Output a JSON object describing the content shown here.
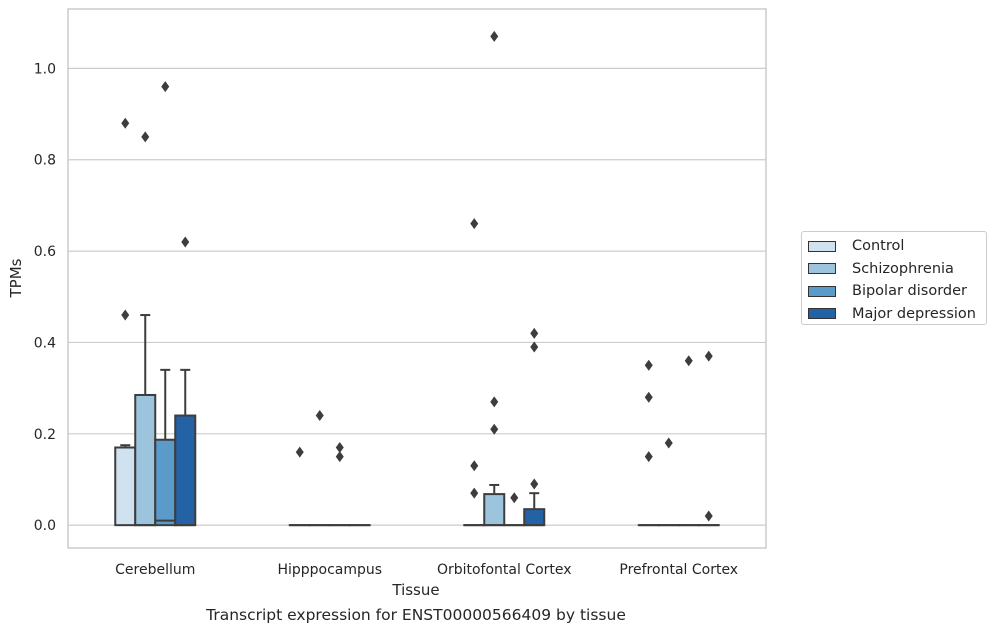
{
  "chart_data": {
    "type": "box",
    "ylabel": "TPMs",
    "xlabel": "Tissue",
    "caption": "Transcript expression for ENST00000566409 by tissue",
    "ylim": [
      -0.05,
      1.13
    ],
    "yticks": [
      0.0,
      0.2,
      0.4,
      0.6,
      0.8,
      1.0
    ],
    "ytick_labels": [
      "0.0",
      "0.2",
      "0.4",
      "0.6",
      "0.8",
      "1.0"
    ],
    "grid": true,
    "legend_position": "right",
    "categories": [
      "Cerebellum",
      "Hipppocampus",
      "Orbitofontal Cortex",
      "Prefrontal Cortex"
    ],
    "series": [
      {
        "name": "Control",
        "color": "#d0e1f0",
        "boxes": [
          {
            "q1": 0.0,
            "median": 0.17,
            "q3": 0.17,
            "whisker_low": 0.0,
            "whisker_high": 0.175,
            "outliers": [
              0.46,
              0.88
            ]
          },
          {
            "q1": 0.0,
            "median": 0.0,
            "q3": 0.0,
            "whisker_low": 0.0,
            "whisker_high": 0.0,
            "outliers": [
              0.16
            ]
          },
          {
            "q1": 0.0,
            "median": 0.0,
            "q3": 0.0,
            "whisker_low": 0.0,
            "whisker_high": 0.0,
            "outliers": [
              0.07,
              0.13,
              0.66
            ]
          },
          {
            "q1": 0.0,
            "median": 0.0,
            "q3": 0.0,
            "whisker_low": 0.0,
            "whisker_high": 0.0,
            "outliers": [
              0.15,
              0.28,
              0.35
            ]
          }
        ]
      },
      {
        "name": "Schizophrenia",
        "color": "#9dc4dd",
        "boxes": [
          {
            "q1": 0.0,
            "median": 0.0,
            "q3": 0.285,
            "whisker_low": 0.0,
            "whisker_high": 0.46,
            "outliers": [
              0.85
            ]
          },
          {
            "q1": 0.0,
            "median": 0.0,
            "q3": 0.0,
            "whisker_low": 0.0,
            "whisker_high": 0.0,
            "outliers": [
              0.24
            ]
          },
          {
            "q1": 0.0,
            "median": 0.0,
            "q3": 0.068,
            "whisker_low": 0.0,
            "whisker_high": 0.088,
            "outliers": [
              0.21,
              0.27,
              1.07
            ]
          },
          {
            "q1": 0.0,
            "median": 0.0,
            "q3": 0.0,
            "whisker_low": 0.0,
            "whisker_high": 0.0,
            "outliers": [
              0.18
            ]
          }
        ]
      },
      {
        "name": "Bipolar disorder",
        "color": "#5a9bc9",
        "boxes": [
          {
            "q1": 0.0,
            "median": 0.01,
            "q3": 0.187,
            "whisker_low": 0.0,
            "whisker_high": 0.34,
            "outliers": [
              0.96
            ]
          },
          {
            "q1": 0.0,
            "median": 0.0,
            "q3": 0.0,
            "whisker_low": 0.0,
            "whisker_high": 0.0,
            "outliers": [
              0.15,
              0.17
            ]
          },
          {
            "q1": 0.0,
            "median": 0.0,
            "q3": 0.0,
            "whisker_low": 0.0,
            "whisker_high": 0.0,
            "outliers": [
              0.06
            ]
          },
          {
            "q1": 0.0,
            "median": 0.0,
            "q3": 0.0,
            "whisker_low": 0.0,
            "whisker_high": 0.0,
            "outliers": [
              0.36
            ]
          }
        ]
      },
      {
        "name": "Major depression",
        "color": "#2462a6",
        "boxes": [
          {
            "q1": 0.0,
            "median": 0.0,
            "q3": 0.24,
            "whisker_low": 0.0,
            "whisker_high": 0.34,
            "outliers": [
              0.62
            ]
          },
          {
            "q1": 0.0,
            "median": 0.0,
            "q3": 0.0,
            "whisker_low": 0.0,
            "whisker_high": 0.0,
            "outliers": []
          },
          {
            "q1": 0.0,
            "median": 0.0,
            "q3": 0.035,
            "whisker_low": 0.0,
            "whisker_high": 0.07,
            "outliers": [
              0.09,
              0.39,
              0.42
            ]
          },
          {
            "q1": 0.0,
            "median": 0.0,
            "q3": 0.0,
            "whisker_low": 0.0,
            "whisker_high": 0.0,
            "outliers": [
              0.02,
              0.37
            ]
          }
        ]
      }
    ]
  }
}
